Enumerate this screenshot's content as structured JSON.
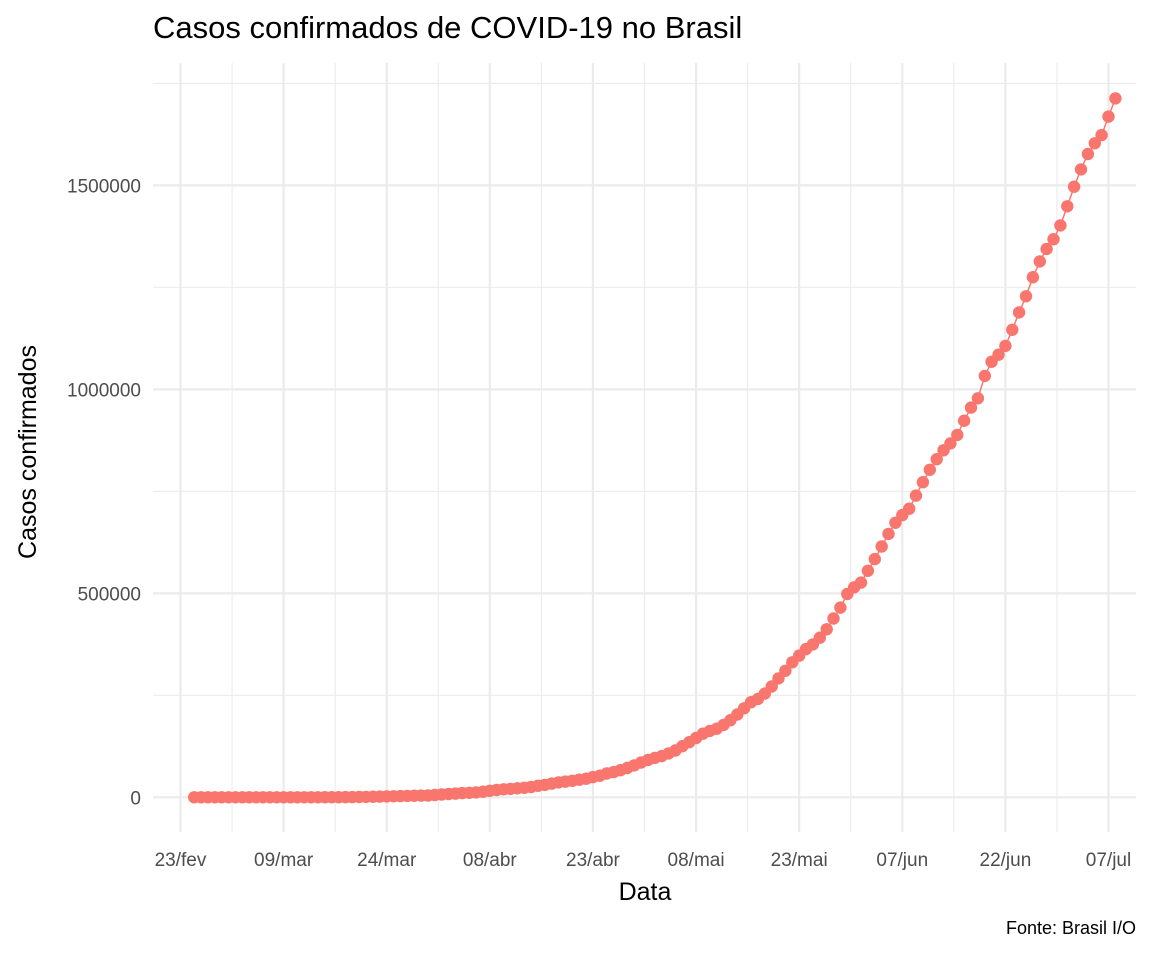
{
  "chart_data": {
    "type": "scatter",
    "title": "Casos confirmados de COVID-19 no Brasil",
    "caption": "Fonte: Brasil I/O",
    "xlabel": "Data",
    "ylabel": "Casos confirmados",
    "x_tick_labels": [
      "23/fev",
      "09/mar",
      "24/mar",
      "08/abr",
      "23/abr",
      "08/mai",
      "23/mai",
      "07/jun",
      "22/jun",
      "07/jul"
    ],
    "y_tick_labels": [
      "0",
      "500000",
      "1000000",
      "1500000"
    ],
    "y_ticks": [
      0,
      500000,
      1000000,
      1500000
    ],
    "ylim": [
      -85000,
      1800000
    ],
    "xlim": [
      "2020-02-19",
      "2020-07-11"
    ],
    "grid": true,
    "point_color": "#F8766D",
    "line_color": "#F8766D",
    "series": [
      {
        "x": [
          "2020-02-25",
          "2020-02-26",
          "2020-02-27",
          "2020-02-28",
          "2020-02-29",
          "2020-03-01",
          "2020-03-02",
          "2020-03-03",
          "2020-03-04",
          "2020-03-05",
          "2020-03-06",
          "2020-03-07",
          "2020-03-08",
          "2020-03-09",
          "2020-03-10",
          "2020-03-11",
          "2020-03-12",
          "2020-03-13",
          "2020-03-14",
          "2020-03-15",
          "2020-03-16",
          "2020-03-17",
          "2020-03-18",
          "2020-03-19",
          "2020-03-20",
          "2020-03-21",
          "2020-03-22",
          "2020-03-23",
          "2020-03-24",
          "2020-03-25",
          "2020-03-26",
          "2020-03-27",
          "2020-03-28",
          "2020-03-29",
          "2020-03-30",
          "2020-03-31",
          "2020-04-01",
          "2020-04-02",
          "2020-04-03",
          "2020-04-04",
          "2020-04-05",
          "2020-04-06",
          "2020-04-07",
          "2020-04-08",
          "2020-04-09",
          "2020-04-10",
          "2020-04-11",
          "2020-04-12",
          "2020-04-13",
          "2020-04-14",
          "2020-04-15",
          "2020-04-16",
          "2020-04-17",
          "2020-04-18",
          "2020-04-19",
          "2020-04-20",
          "2020-04-21",
          "2020-04-22",
          "2020-04-23",
          "2020-04-24",
          "2020-04-25",
          "2020-04-26",
          "2020-04-27",
          "2020-04-28",
          "2020-04-29",
          "2020-04-30",
          "2020-05-01",
          "2020-05-02",
          "2020-05-03",
          "2020-05-04",
          "2020-05-05",
          "2020-05-06",
          "2020-05-07",
          "2020-05-08",
          "2020-05-09",
          "2020-05-10",
          "2020-05-11",
          "2020-05-12",
          "2020-05-13",
          "2020-05-14",
          "2020-05-15",
          "2020-05-16",
          "2020-05-17",
          "2020-05-18",
          "2020-05-19",
          "2020-05-20",
          "2020-05-21",
          "2020-05-22",
          "2020-05-23",
          "2020-05-24",
          "2020-05-25",
          "2020-05-26",
          "2020-05-27",
          "2020-05-28",
          "2020-05-29",
          "2020-05-30",
          "2020-05-31",
          "2020-06-01",
          "2020-06-02",
          "2020-06-03",
          "2020-06-04",
          "2020-06-05",
          "2020-06-06",
          "2020-06-07",
          "2020-06-08",
          "2020-06-09",
          "2020-06-10",
          "2020-06-11",
          "2020-06-12",
          "2020-06-13",
          "2020-06-14",
          "2020-06-15",
          "2020-06-16",
          "2020-06-17",
          "2020-06-18",
          "2020-06-19",
          "2020-06-20",
          "2020-06-21",
          "2020-06-22",
          "2020-06-23",
          "2020-06-24",
          "2020-06-25",
          "2020-06-26",
          "2020-06-27",
          "2020-06-28",
          "2020-06-29",
          "2020-06-30",
          "2020-07-01",
          "2020-07-02",
          "2020-07-03",
          "2020-07-04",
          "2020-07-05",
          "2020-07-06",
          "2020-07-07",
          "2020-07-08"
        ],
        "y": [
          1,
          1,
          1,
          1,
          2,
          2,
          2,
          3,
          4,
          8,
          13,
          19,
          25,
          30,
          34,
          52,
          77,
          98,
          121,
          200,
          234,
          291,
          428,
          621,
          904,
          1128,
          1546,
          1891,
          2201,
          2433,
          2915,
          3417,
          3904,
          4256,
          4579,
          5717,
          6836,
          8044,
          9056,
          10278,
          11130,
          12056,
          13717,
          15927,
          17857,
          19638,
          20727,
          22169,
          23430,
          25262,
          28320,
          30425,
          33682,
          36599,
          38654,
          40581,
          43079,
          45757,
          49492,
          52995,
          58509,
          61888,
          66501,
          71886,
          78162,
          85380,
          91589,
          96559,
          101147,
          107780,
          114715,
          125218,
          135106,
          145328,
          155939,
          162699,
          168331,
          177589,
          188974,
          202918,
          218223,
          233142,
          241080,
          254220,
          271628,
          291579,
          310087,
          330890,
          347398,
          363211,
          374898,
          391222,
          411821,
          438238,
          465166,
          498440,
          514849,
          526447,
          555383,
          584016,
          614941,
          645771,
          672846,
          691758,
          707412,
          739503,
          772416,
          802828,
          828810,
          850514,
          867624,
          888271,
          923189,
          955377,
          978142,
          1032913,
          1067579,
          1085038,
          1106470,
          1145906,
          1188631,
          1228114,
          1274974,
          1313667,
          1344143,
          1368195,
          1402041,
          1448753,
          1496858,
          1539081,
          1577004,
          1603055,
          1623284,
          1668589,
          1713160
        ]
      }
    ]
  }
}
